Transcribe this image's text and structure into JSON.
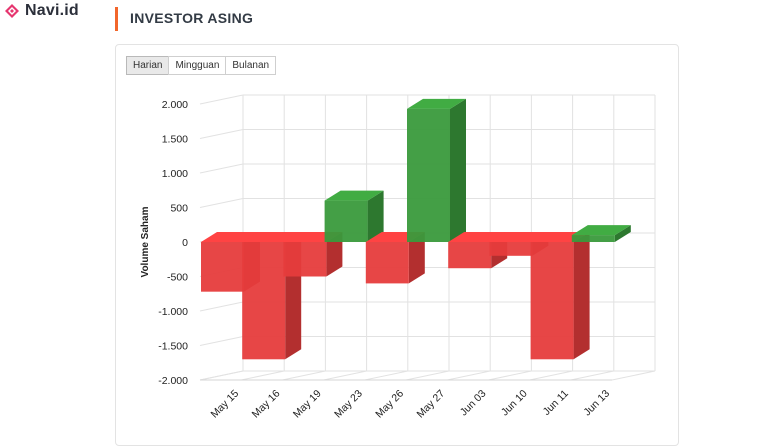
{
  "brand": {
    "name": "Navi.id",
    "icon": "diamond-logo-icon",
    "color": "#e6356f"
  },
  "section": {
    "title": "INVESTOR ASING",
    "accent": "#f2662b"
  },
  "tabs": [
    {
      "label": "Harian",
      "active": true
    },
    {
      "label": "Mingguan",
      "active": false
    },
    {
      "label": "Bulanan",
      "active": false
    }
  ],
  "chart_data": {
    "type": "bar",
    "title": "",
    "xlabel": "",
    "ylabel": "Volume Saham",
    "ylim": [
      -2000,
      2000
    ],
    "yticks": [
      2000,
      1500,
      1000,
      500,
      0,
      -500,
      -1000,
      -1500,
      -2000
    ],
    "ytick_labels": [
      "2.000",
      "1.500",
      "1.000",
      "500",
      "0",
      "-500",
      "-1.000",
      "-1.500",
      "-2.000"
    ],
    "categories": [
      "May 15",
      "May 16",
      "May 19",
      "May 23",
      "May 26",
      "May 27",
      "Jun 03",
      "Jun 10",
      "Jun 11",
      "Jun 13"
    ],
    "values": [
      -720,
      -1700,
      -500,
      600,
      -600,
      1930,
      -380,
      -200,
      -1700,
      100
    ],
    "colors": {
      "positive": "#3a9a3c",
      "negative": "#e63c3c"
    }
  }
}
